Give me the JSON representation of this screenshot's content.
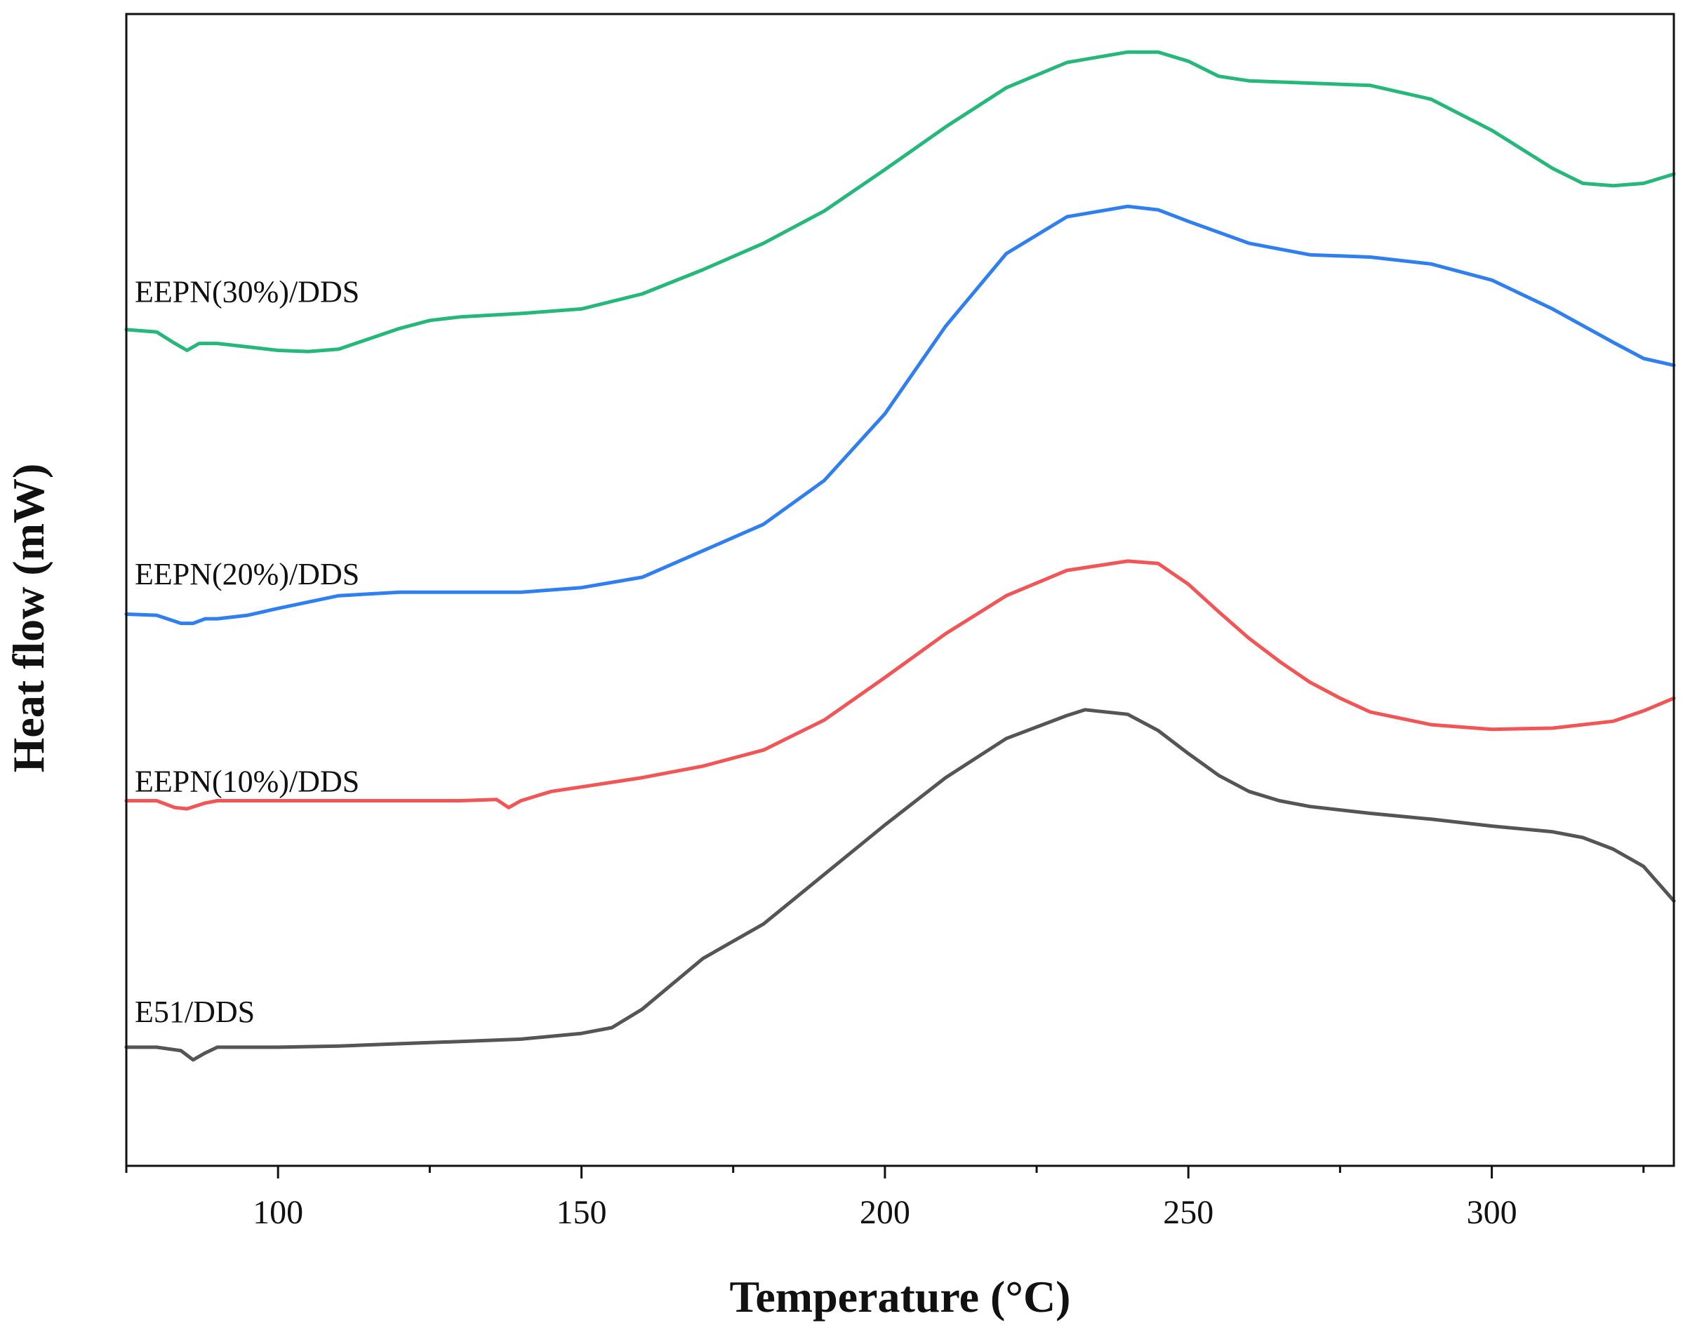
{
  "chart_data": {
    "type": "line",
    "title": "",
    "xlabel": "Temperature (°C)",
    "ylabel": "Heat flow (mW)",
    "xlim": [
      75,
      330
    ],
    "ylim": [
      0,
      100
    ],
    "x_ticks": [
      100,
      150,
      200,
      250,
      300
    ],
    "x_tick_labels": [
      "100",
      "150",
      "200",
      "250",
      "300"
    ],
    "y_ticks_shown": false,
    "grid": false,
    "legend": "inline-left",
    "series": [
      {
        "name": "E51/DDS",
        "color": "#555555",
        "label_anchor": [
          75,
          12.5
        ],
        "points": [
          [
            75,
            10.3
          ],
          [
            80,
            10.3
          ],
          [
            84,
            10.0
          ],
          [
            86,
            9.2
          ],
          [
            88,
            9.8
          ],
          [
            90,
            10.3
          ],
          [
            95,
            10.3
          ],
          [
            100,
            10.3
          ],
          [
            110,
            10.4
          ],
          [
            120,
            10.6
          ],
          [
            130,
            10.8
          ],
          [
            140,
            11.0
          ],
          [
            150,
            11.5
          ],
          [
            155,
            12.0
          ],
          [
            160,
            13.6
          ],
          [
            165,
            15.8
          ],
          [
            170,
            18.0
          ],
          [
            180,
            21.0
          ],
          [
            190,
            25.3
          ],
          [
            200,
            29.6
          ],
          [
            210,
            33.7
          ],
          [
            220,
            37.1
          ],
          [
            230,
            39.1
          ],
          [
            233,
            39.6
          ],
          [
            240,
            39.2
          ],
          [
            245,
            37.8
          ],
          [
            250,
            35.8
          ],
          [
            255,
            33.9
          ],
          [
            260,
            32.5
          ],
          [
            265,
            31.7
          ],
          [
            270,
            31.2
          ],
          [
            280,
            30.6
          ],
          [
            290,
            30.1
          ],
          [
            300,
            29.5
          ],
          [
            310,
            29.0
          ],
          [
            315,
            28.5
          ],
          [
            320,
            27.5
          ],
          [
            325,
            26.0
          ],
          [
            330,
            23.0
          ]
        ]
      },
      {
        "name": "EEPN(10%)/DDS",
        "color": "#f25555",
        "label_anchor": [
          75,
          32.5
        ],
        "points": [
          [
            75,
            31.7
          ],
          [
            80,
            31.7
          ],
          [
            83,
            31.1
          ],
          [
            85,
            31.0
          ],
          [
            88,
            31.5
          ],
          [
            90,
            31.7
          ],
          [
            100,
            31.7
          ],
          [
            110,
            31.7
          ],
          [
            120,
            31.7
          ],
          [
            130,
            31.7
          ],
          [
            136,
            31.8
          ],
          [
            138,
            31.1
          ],
          [
            140,
            31.7
          ],
          [
            145,
            32.5
          ],
          [
            150,
            32.9
          ],
          [
            160,
            33.7
          ],
          [
            170,
            34.7
          ],
          [
            180,
            36.1
          ],
          [
            190,
            38.7
          ],
          [
            200,
            42.4
          ],
          [
            210,
            46.2
          ],
          [
            220,
            49.5
          ],
          [
            230,
            51.7
          ],
          [
            240,
            52.5
          ],
          [
            245,
            52.3
          ],
          [
            250,
            50.5
          ],
          [
            255,
            48.1
          ],
          [
            260,
            45.8
          ],
          [
            265,
            43.8
          ],
          [
            270,
            42.0
          ],
          [
            275,
            40.6
          ],
          [
            280,
            39.4
          ],
          [
            290,
            38.3
          ],
          [
            300,
            37.9
          ],
          [
            310,
            38.0
          ],
          [
            320,
            38.6
          ],
          [
            325,
            39.5
          ],
          [
            330,
            40.6
          ]
        ]
      },
      {
        "name": "EEPN(20%)/DDS",
        "color": "#2f7ff0",
        "label_anchor": [
          75,
          50.5
        ],
        "points": [
          [
            75,
            47.9
          ],
          [
            80,
            47.8
          ],
          [
            84,
            47.1
          ],
          [
            86,
            47.1
          ],
          [
            88,
            47.5
          ],
          [
            90,
            47.5
          ],
          [
            95,
            47.8
          ],
          [
            100,
            48.4
          ],
          [
            110,
            49.5
          ],
          [
            120,
            49.8
          ],
          [
            130,
            49.8
          ],
          [
            140,
            49.8
          ],
          [
            150,
            50.2
          ],
          [
            160,
            51.1
          ],
          [
            170,
            53.4
          ],
          [
            180,
            55.7
          ],
          [
            190,
            59.5
          ],
          [
            200,
            65.3
          ],
          [
            210,
            72.9
          ],
          [
            220,
            79.2
          ],
          [
            230,
            82.4
          ],
          [
            240,
            83.3
          ],
          [
            245,
            83.0
          ],
          [
            250,
            82.0
          ],
          [
            260,
            80.1
          ],
          [
            270,
            79.1
          ],
          [
            280,
            78.9
          ],
          [
            290,
            78.3
          ],
          [
            300,
            76.9
          ],
          [
            310,
            74.4
          ],
          [
            320,
            71.5
          ],
          [
            325,
            70.1
          ],
          [
            330,
            69.5
          ]
        ]
      },
      {
        "name": "EEPN(30%)/DDS",
        "color": "#25b87a",
        "label_anchor": [
          75,
          75.0
        ],
        "points": [
          [
            75,
            72.6
          ],
          [
            80,
            72.4
          ],
          [
            83,
            71.4
          ],
          [
            85,
            70.8
          ],
          [
            87,
            71.4
          ],
          [
            90,
            71.4
          ],
          [
            95,
            71.1
          ],
          [
            100,
            70.8
          ],
          [
            105,
            70.7
          ],
          [
            110,
            70.9
          ],
          [
            115,
            71.8
          ],
          [
            120,
            72.7
          ],
          [
            125,
            73.4
          ],
          [
            130,
            73.7
          ],
          [
            140,
            74.0
          ],
          [
            150,
            74.4
          ],
          [
            160,
            75.7
          ],
          [
            170,
            77.8
          ],
          [
            180,
            80.1
          ],
          [
            190,
            82.9
          ],
          [
            200,
            86.5
          ],
          [
            210,
            90.2
          ],
          [
            220,
            93.6
          ],
          [
            230,
            95.8
          ],
          [
            240,
            96.7
          ],
          [
            245,
            96.7
          ],
          [
            250,
            95.9
          ],
          [
            255,
            94.6
          ],
          [
            260,
            94.2
          ],
          [
            270,
            94.0
          ],
          [
            280,
            93.8
          ],
          [
            290,
            92.6
          ],
          [
            300,
            89.9
          ],
          [
            310,
            86.6
          ],
          [
            315,
            85.3
          ],
          [
            320,
            85.1
          ],
          [
            325,
            85.3
          ],
          [
            330,
            86.1
          ]
        ]
      }
    ]
  }
}
